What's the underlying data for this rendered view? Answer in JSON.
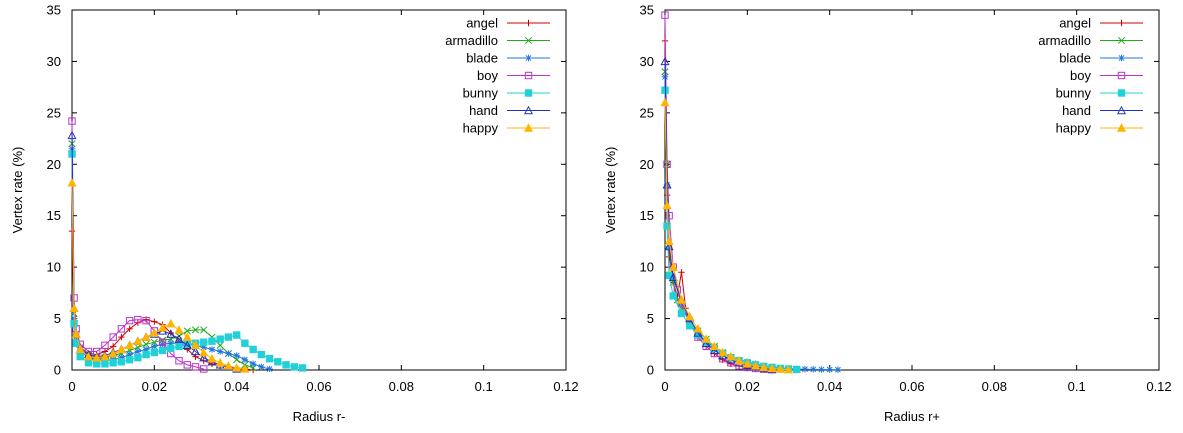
{
  "colors": {
    "angel": "#cc0000",
    "armadillo": "#22aa22",
    "blade": "#2277dd",
    "boy": "#bb33cc",
    "bunny": "#22d0d8",
    "hand": "#2233bb",
    "happy": "#ffb400"
  },
  "chart_data": [
    {
      "type": "line",
      "title": "",
      "xlabel": "Radius r-",
      "ylabel": "Vertex rate (%)",
      "xlim": [
        0,
        0.12
      ],
      "ylim": [
        0,
        35
      ],
      "xticks": [
        "0",
        "0.02",
        "0.04",
        "0.06",
        "0.08",
        "0.1",
        "0.12"
      ],
      "yticks": [
        "0",
        "5",
        "10",
        "15",
        "20",
        "25",
        "30",
        "35"
      ],
      "legend_position": "top-right",
      "series": [
        {
          "name": "angel",
          "marker": "plus",
          "x": [
            0,
            0.0005,
            0.001,
            0.002,
            0.004,
            0.006,
            0.008,
            0.01,
            0.012,
            0.014,
            0.016,
            0.018,
            0.02,
            0.022,
            0.024,
            0.026,
            0.028,
            0.03,
            0.032,
            0.034,
            0.036,
            0.038,
            0.04,
            0.042,
            0.044
          ],
          "y": [
            13.5,
            5,
            3.5,
            2.2,
            1.6,
            1.5,
            1.8,
            2.3,
            3.2,
            4.0,
            4.6,
            4.9,
            4.7,
            4.4,
            3.6,
            2.8,
            2.0,
            1.3,
            0.9,
            0.6,
            0.4,
            0.3,
            0.2,
            0.1,
            0
          ]
        },
        {
          "name": "armadillo",
          "marker": "cross",
          "x": [
            0,
            0.0005,
            0.001,
            0.002,
            0.004,
            0.006,
            0.008,
            0.01,
            0.012,
            0.014,
            0.016,
            0.018,
            0.02,
            0.022,
            0.024,
            0.026,
            0.028,
            0.03,
            0.032,
            0.034,
            0.036,
            0.038,
            0.04,
            0.042,
            0.044
          ],
          "y": [
            22,
            5.5,
            3.5,
            2.2,
            1.5,
            1.2,
            1.2,
            1.4,
            1.6,
            1.9,
            2.2,
            2.5,
            2.7,
            2.9,
            3.0,
            3.3,
            3.8,
            3.9,
            3.9,
            3.2,
            2.4,
            1.6,
            1.0,
            0.5,
            0.2
          ]
        },
        {
          "name": "blade",
          "marker": "star",
          "x": [
            0,
            0.0005,
            0.001,
            0.002,
            0.004,
            0.006,
            0.008,
            0.01,
            0.012,
            0.014,
            0.016,
            0.018,
            0.02,
            0.022,
            0.024,
            0.026,
            0.028,
            0.03,
            0.032,
            0.034,
            0.036,
            0.038,
            0.04,
            0.042,
            0.044,
            0.046,
            0.048
          ],
          "y": [
            21.5,
            5,
            3.2,
            1.8,
            1.2,
            1.0,
            0.9,
            1.0,
            1.2,
            1.5,
            1.8,
            2.0,
            2.3,
            2.5,
            2.6,
            2.6,
            2.5,
            2.4,
            2.2,
            2.0,
            1.8,
            1.6,
            1.4,
            1.0,
            0.6,
            0.3,
            0.1
          ]
        },
        {
          "name": "boy",
          "marker": "square-open",
          "x": [
            0,
            0.0005,
            0.001,
            0.002,
            0.004,
            0.006,
            0.008,
            0.01,
            0.012,
            0.014,
            0.016,
            0.018,
            0.02,
            0.022,
            0.024,
            0.026,
            0.028,
            0.03,
            0.032
          ],
          "y": [
            24.2,
            7,
            4.0,
            2.5,
            1.8,
            1.8,
            2.4,
            3.2,
            4.0,
            4.8,
            4.9,
            4.8,
            3.8,
            2.7,
            1.6,
            0.9,
            0.5,
            0.3,
            0.1
          ]
        },
        {
          "name": "bunny",
          "marker": "square-filled",
          "x": [
            0,
            0.0005,
            0.001,
            0.002,
            0.004,
            0.006,
            0.008,
            0.01,
            0.012,
            0.014,
            0.016,
            0.018,
            0.02,
            0.022,
            0.024,
            0.026,
            0.028,
            0.03,
            0.032,
            0.034,
            0.036,
            0.038,
            0.04,
            0.042,
            0.044,
            0.046,
            0.048,
            0.05,
            0.052,
            0.054,
            0.056
          ],
          "y": [
            21,
            4.5,
            2.6,
            1.3,
            0.7,
            0.6,
            0.6,
            0.7,
            0.8,
            1.0,
            1.2,
            1.5,
            1.7,
            1.9,
            2.1,
            2.3,
            2.5,
            2.6,
            2.7,
            2.8,
            3.0,
            3.2,
            3.4,
            2.6,
            2.0,
            1.5,
            1.1,
            0.8,
            0.5,
            0.3,
            0.2
          ]
        },
        {
          "name": "hand",
          "marker": "triangle-open",
          "x": [
            0,
            0.0005,
            0.001,
            0.002,
            0.004,
            0.006,
            0.008,
            0.01,
            0.012,
            0.014,
            0.016,
            0.018,
            0.02,
            0.022,
            0.024,
            0.026,
            0.028,
            0.03,
            0.032,
            0.034,
            0.036,
            0.038,
            0.04
          ],
          "y": [
            22.8,
            6,
            3.5,
            2.0,
            1.5,
            1.3,
            1.4,
            1.7,
            2.0,
            2.4,
            2.8,
            3.2,
            3.5,
            3.8,
            3.5,
            3.0,
            2.4,
            1.8,
            1.2,
            0.8,
            0.5,
            0.3,
            0.1
          ]
        },
        {
          "name": "happy",
          "marker": "triangle-filled",
          "x": [
            0,
            0.0005,
            0.001,
            0.002,
            0.004,
            0.006,
            0.008,
            0.01,
            0.012,
            0.014,
            0.016,
            0.018,
            0.02,
            0.022,
            0.024,
            0.026,
            0.028,
            0.03,
            0.032,
            0.034,
            0.036,
            0.038,
            0.04,
            0.042
          ],
          "y": [
            18.2,
            6,
            3.5,
            2.0,
            1.3,
            1.2,
            1.3,
            1.6,
            2.0,
            2.4,
            2.8,
            3.2,
            3.6,
            4.1,
            4.5,
            3.9,
            3.2,
            2.4,
            1.7,
            1.1,
            0.7,
            0.4,
            0.2,
            0.1
          ]
        }
      ]
    },
    {
      "type": "line",
      "title": "",
      "xlabel": "Radius r+",
      "ylabel": "Vertex rate (%)",
      "xlim": [
        0,
        0.12
      ],
      "ylim": [
        0,
        35
      ],
      "xticks": [
        "0",
        "0.02",
        "0.04",
        "0.06",
        "0.08",
        "0.1",
        "0.12"
      ],
      "yticks": [
        "0",
        "5",
        "10",
        "15",
        "20",
        "25",
        "30",
        "35"
      ],
      "legend_position": "top-right",
      "series": [
        {
          "name": "angel",
          "marker": "plus",
          "x": [
            0,
            0.0005,
            0.001,
            0.002,
            0.003,
            0.004,
            0.005,
            0.006,
            0.008,
            0.01,
            0.012,
            0.014,
            0.016,
            0.018,
            0.02,
            0.022,
            0.024,
            0.026
          ],
          "y": [
            32,
            17,
            11,
            8.5,
            7.2,
            9.5,
            6,
            4.5,
            3.2,
            2.3,
            1.6,
            1.0,
            0.6,
            0.4,
            0.2,
            0.1,
            0.05,
            0
          ]
        },
        {
          "name": "armadillo",
          "marker": "cross",
          "x": [
            0,
            0.0005,
            0.001,
            0.002,
            0.003,
            0.004,
            0.006,
            0.008,
            0.01,
            0.012,
            0.014,
            0.016,
            0.018,
            0.02,
            0.022,
            0.024,
            0.026,
            0.028,
            0.03
          ],
          "y": [
            29,
            20,
            12,
            8.5,
            6.8,
            6.0,
            4.8,
            3.8,
            3.0,
            2.3,
            1.7,
            1.2,
            0.9,
            0.6,
            0.4,
            0.3,
            0.2,
            0.1,
            0.05
          ]
        },
        {
          "name": "blade",
          "marker": "star",
          "x": [
            0,
            0.0005,
            0.001,
            0.002,
            0.004,
            0.006,
            0.008,
            0.01,
            0.012,
            0.014,
            0.016,
            0.018,
            0.02,
            0.022,
            0.024,
            0.026,
            0.028,
            0.03,
            0.032,
            0.034,
            0.036,
            0.038,
            0.04,
            0.042
          ],
          "y": [
            28.5,
            18,
            12,
            9,
            6.5,
            4.6,
            3.5,
            2.8,
            2.2,
            1.7,
            1.3,
            1.0,
            0.8,
            0.6,
            0.4,
            0.3,
            0.2,
            0.15,
            0.1,
            0.08,
            0.06,
            0.05,
            0.04,
            0.03
          ]
        },
        {
          "name": "boy",
          "marker": "square-open",
          "x": [
            0,
            0.0005,
            0.001,
            0.002,
            0.003,
            0.004,
            0.006,
            0.008,
            0.01,
            0.012,
            0.014,
            0.016,
            0.018,
            0.02,
            0.022,
            0.024,
            0.026
          ],
          "y": [
            34.5,
            20,
            15,
            10,
            7.8,
            6.5,
            4.5,
            3.2,
            2.3,
            1.6,
            1.1,
            0.7,
            0.4,
            0.25,
            0.15,
            0.08,
            0.03
          ]
        },
        {
          "name": "bunny",
          "marker": "square-filled",
          "x": [
            0,
            0.0005,
            0.001,
            0.002,
            0.004,
            0.006,
            0.008,
            0.01,
            0.012,
            0.014,
            0.016,
            0.018,
            0.02,
            0.022,
            0.024,
            0.026,
            0.028,
            0.03,
            0.032
          ],
          "y": [
            27.2,
            14,
            9.2,
            7.2,
            5.5,
            4.3,
            3.4,
            2.7,
            2.1,
            1.6,
            1.2,
            0.9,
            0.7,
            0.5,
            0.35,
            0.25,
            0.15,
            0.1,
            0.05
          ]
        },
        {
          "name": "hand",
          "marker": "triangle-open",
          "x": [
            0,
            0.0005,
            0.001,
            0.002,
            0.004,
            0.006,
            0.008,
            0.01,
            0.012,
            0.014,
            0.016,
            0.018,
            0.02,
            0.022,
            0.024,
            0.026
          ],
          "y": [
            30,
            18,
            12,
            9,
            6.8,
            5.0,
            3.6,
            2.6,
            1.9,
            1.4,
            1.0,
            0.7,
            0.45,
            0.3,
            0.15,
            0.05
          ]
        },
        {
          "name": "happy",
          "marker": "triangle-filled",
          "x": [
            0,
            0.0005,
            0.001,
            0.002,
            0.004,
            0.006,
            0.008,
            0.01,
            0.012,
            0.014,
            0.016,
            0.018,
            0.02,
            0.022,
            0.024,
            0.026,
            0.028,
            0.03
          ],
          "y": [
            26,
            16,
            12.5,
            10,
            6.8,
            5.2,
            4.0,
            3.0,
            2.3,
            1.7,
            1.3,
            0.9,
            0.6,
            0.4,
            0.25,
            0.15,
            0.08,
            0.03
          ]
        }
      ]
    }
  ]
}
